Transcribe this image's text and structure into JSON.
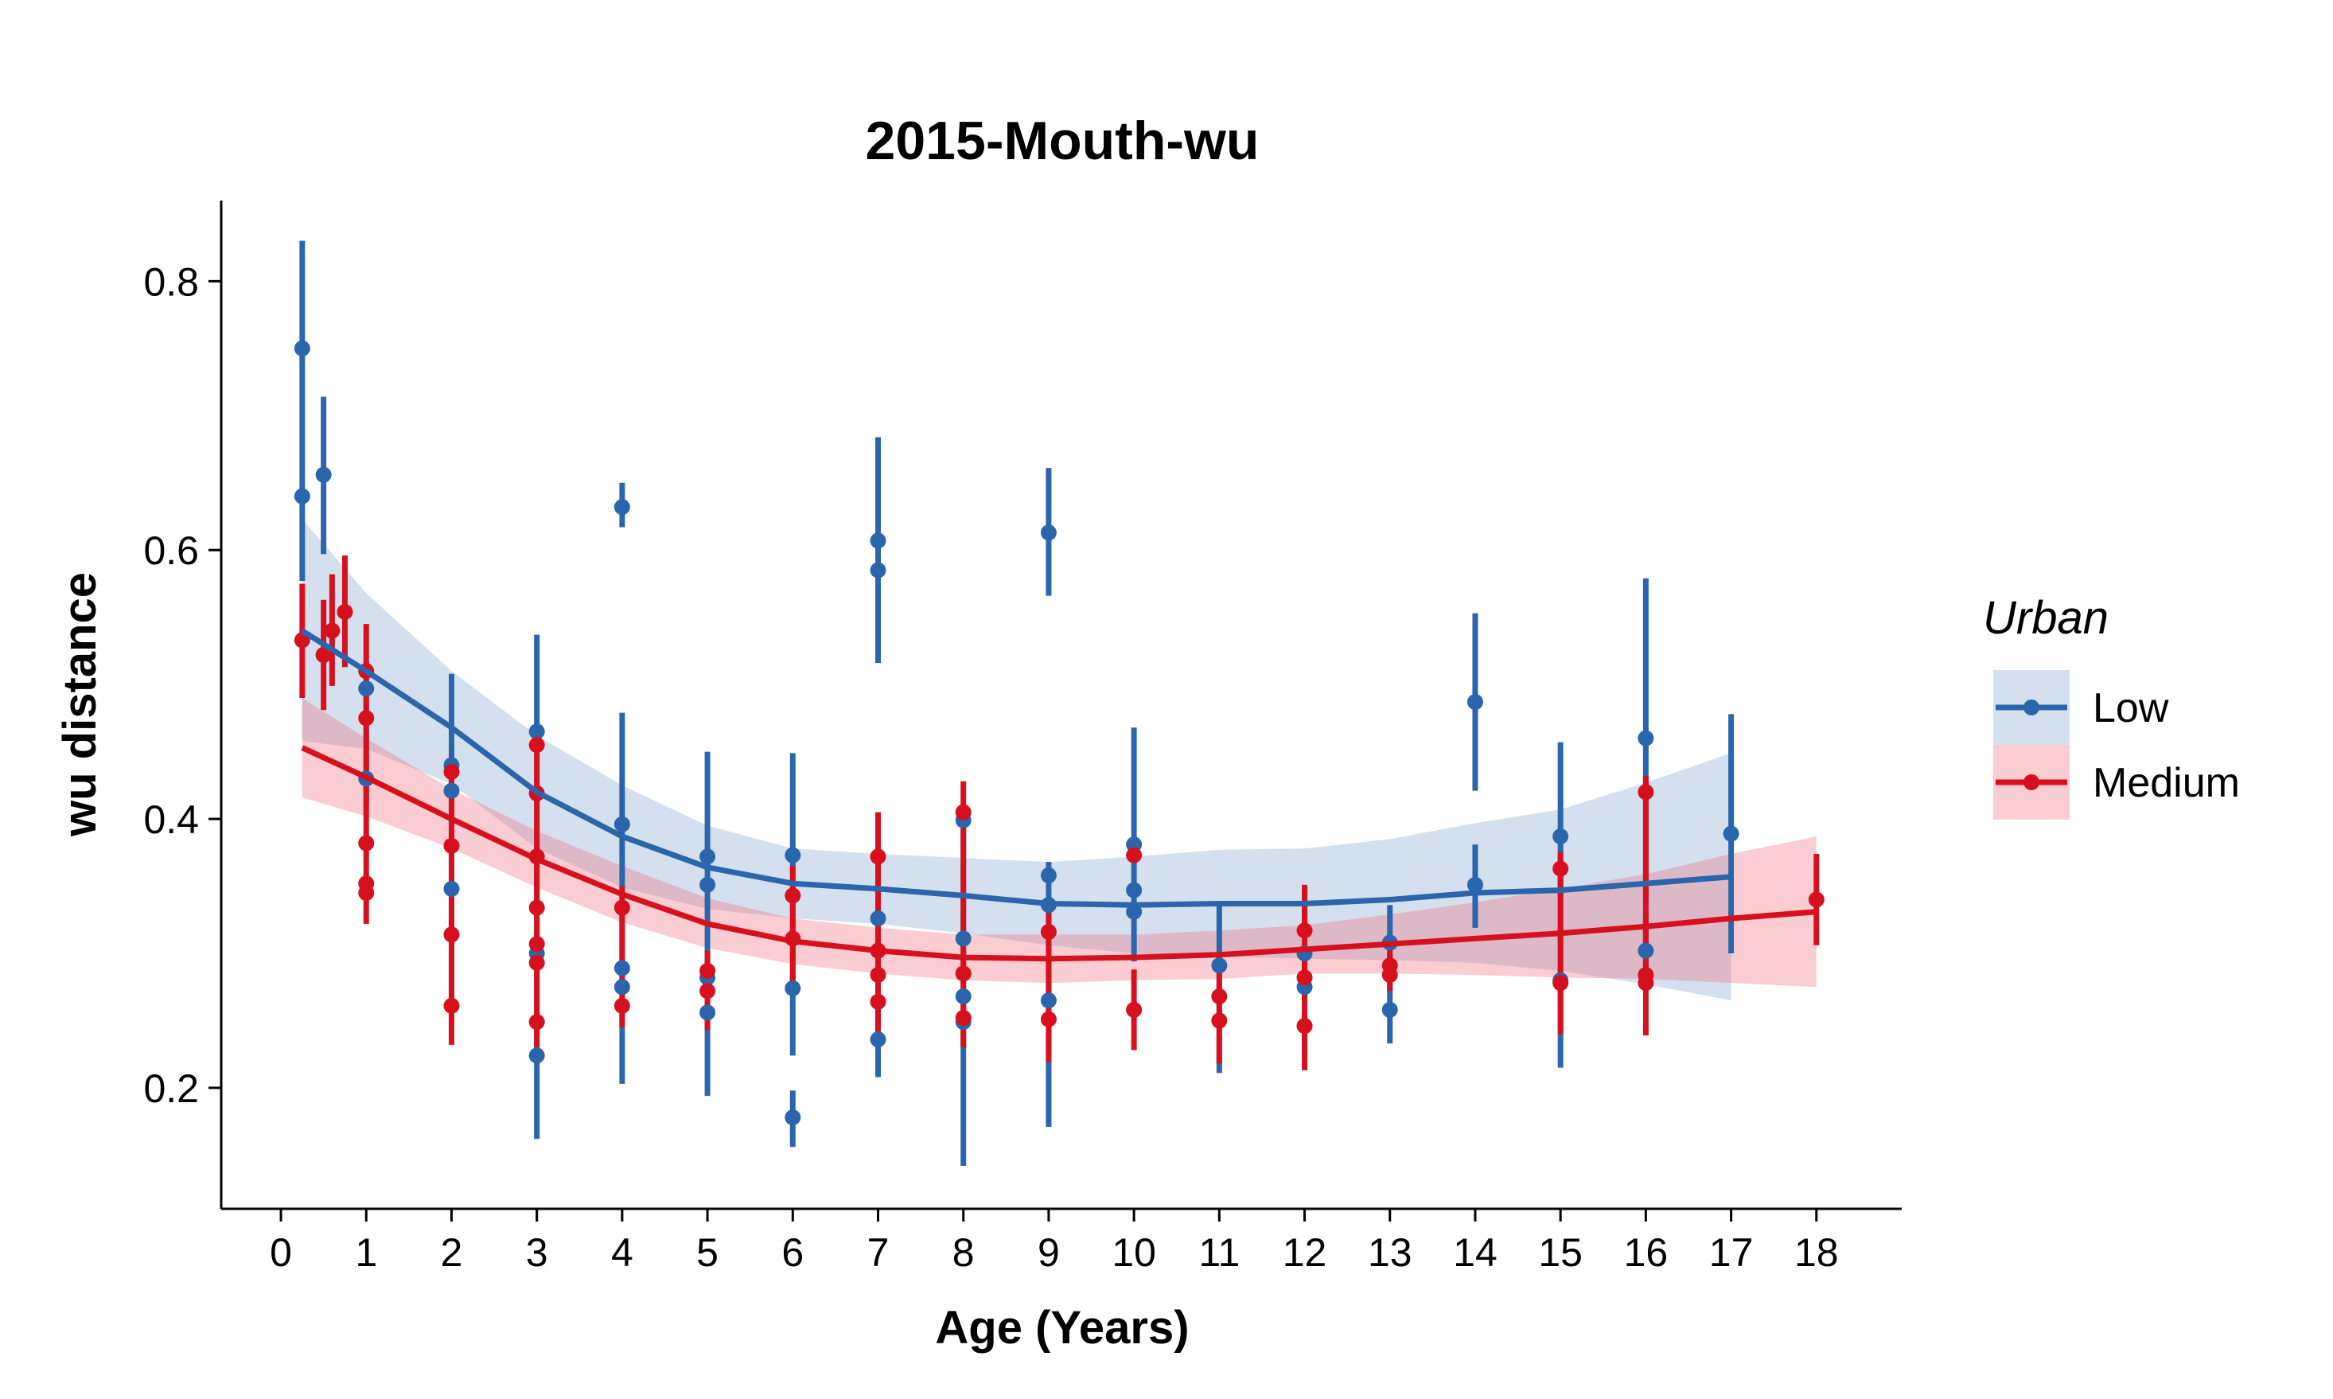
{
  "chart_data": {
    "type": "scatter",
    "title": "2015-Mouth-wu",
    "xlabel": "Age (Years)",
    "ylabel": "wu distance",
    "xlim": [
      -0.7,
      19.0
    ],
    "ylim": [
      0.11,
      0.86
    ],
    "xticks": [
      0,
      1,
      2,
      3,
      4,
      5,
      6,
      7,
      8,
      9,
      10,
      11,
      12,
      13,
      14,
      15,
      16,
      17,
      18
    ],
    "yticks": [
      0.2,
      0.4,
      0.6,
      0.8
    ],
    "yticklabels": [
      "0.2",
      "0.4",
      "0.6",
      "0.8"
    ],
    "grid": false,
    "legend": {
      "title": "Urban",
      "position": "right"
    },
    "series": [
      {
        "name": "Low",
        "color": "#2B65AB",
        "ribbon_color": "#2B65AB",
        "points": [
          {
            "x": 0.25,
            "y": 0.75
          },
          {
            "x": 0.25,
            "y": 0.64
          },
          {
            "x": 0.5,
            "y": 0.656
          },
          {
            "x": 0.5,
            "y": 0.522
          },
          {
            "x": 1,
            "y": 0.497
          },
          {
            "x": 1,
            "y": 0.43
          },
          {
            "x": 2,
            "y": 0.44
          },
          {
            "x": 2,
            "y": 0.421
          },
          {
            "x": 2,
            "y": 0.348
          },
          {
            "x": 3,
            "y": 0.465
          },
          {
            "x": 3,
            "y": 0.3
          },
          {
            "x": 3,
            "y": 0.224
          },
          {
            "x": 4,
            "y": 0.632
          },
          {
            "x": 4,
            "y": 0.396
          },
          {
            "x": 4,
            "y": 0.289
          },
          {
            "x": 4,
            "y": 0.275
          },
          {
            "x": 5,
            "y": 0.372
          },
          {
            "x": 5,
            "y": 0.351
          },
          {
            "x": 5,
            "y": 0.282
          },
          {
            "x": 5,
            "y": 0.256
          },
          {
            "x": 6,
            "y": 0.373
          },
          {
            "x": 6,
            "y": 0.274
          },
          {
            "x": 6,
            "y": 0.178
          },
          {
            "x": 7,
            "y": 0.607
          },
          {
            "x": 7,
            "y": 0.585
          },
          {
            "x": 7,
            "y": 0.326
          },
          {
            "x": 7,
            "y": 0.236
          },
          {
            "x": 8,
            "y": 0.399
          },
          {
            "x": 8,
            "y": 0.311
          },
          {
            "x": 8,
            "y": 0.268
          },
          {
            "x": 8,
            "y": 0.249
          },
          {
            "x": 9,
            "y": 0.613
          },
          {
            "x": 9,
            "y": 0.358
          },
          {
            "x": 9,
            "y": 0.336
          },
          {
            "x": 9,
            "y": 0.265
          },
          {
            "x": 10,
            "y": 0.381
          },
          {
            "x": 10,
            "y": 0.347
          },
          {
            "x": 10,
            "y": 0.331
          },
          {
            "x": 11,
            "y": 0.291
          },
          {
            "x": 12,
            "y": 0.3
          },
          {
            "x": 12,
            "y": 0.275
          },
          {
            "x": 13,
            "y": 0.308
          },
          {
            "x": 13,
            "y": 0.258
          },
          {
            "x": 14,
            "y": 0.487
          },
          {
            "x": 14,
            "y": 0.351
          },
          {
            "x": 15,
            "y": 0.387
          },
          {
            "x": 15,
            "y": 0.28
          },
          {
            "x": 16,
            "y": 0.46
          },
          {
            "x": 16,
            "y": 0.302
          },
          {
            "x": 17,
            "y": 0.389
          }
        ],
        "errorbars": [
          {
            "x": 0.25,
            "low": 0.577,
            "high": 0.83
          },
          {
            "x": 0.5,
            "low": 0.597,
            "high": 0.714
          },
          {
            "x": 1,
            "low": 0.41,
            "high": 0.517
          },
          {
            "x": 2,
            "low": 0.258,
            "high": 0.508
          },
          {
            "x": 3,
            "low": 0.162,
            "high": 0.537
          },
          {
            "x": 4,
            "low": 0.617,
            "high": 0.65
          },
          {
            "x": 4,
            "low": 0.203,
            "high": 0.479
          },
          {
            "x": 5,
            "low": 0.194,
            "high": 0.45
          },
          {
            "x": 6,
            "low": 0.224,
            "high": 0.449
          },
          {
            "x": 6,
            "low": 0.156,
            "high": 0.198
          },
          {
            "x": 7,
            "low": 0.516,
            "high": 0.684
          },
          {
            "x": 7,
            "low": 0.208,
            "high": 0.34
          },
          {
            "x": 8,
            "low": 0.142,
            "high": 0.41
          },
          {
            "x": 9,
            "low": 0.566,
            "high": 0.661
          },
          {
            "x": 9,
            "low": 0.171,
            "high": 0.368
          },
          {
            "x": 10,
            "low": 0.294,
            "high": 0.468
          },
          {
            "x": 11,
            "low": 0.211,
            "high": 0.338
          },
          {
            "x": 12,
            "low": 0.266,
            "high": 0.306
          },
          {
            "x": 13,
            "low": 0.233,
            "high": 0.336
          },
          {
            "x": 14,
            "low": 0.421,
            "high": 0.553
          },
          {
            "x": 14,
            "low": 0.319,
            "high": 0.381
          },
          {
            "x": 15,
            "low": 0.215,
            "high": 0.457
          },
          {
            "x": 16,
            "low": 0.34,
            "high": 0.579
          },
          {
            "x": 16,
            "low": 0.285,
            "high": 0.33
          },
          {
            "x": 17,
            "low": 0.3,
            "high": 0.478
          }
        ],
        "smooth": {
          "x": [
            0.25,
            1,
            2,
            3,
            4,
            5,
            6,
            7,
            8,
            9,
            10,
            11,
            12,
            13,
            14,
            15,
            16,
            17
          ],
          "y": [
            0.54,
            0.51,
            0.468,
            0.42,
            0.387,
            0.364,
            0.352,
            0.348,
            0.343,
            0.337,
            0.336,
            0.337,
            0.337,
            0.34,
            0.345,
            0.347,
            0.352,
            0.357
          ],
          "lower": [
            0.458,
            0.452,
            0.426,
            0.378,
            0.349,
            0.333,
            0.326,
            0.322,
            0.315,
            0.306,
            0.3,
            0.298,
            0.296,
            0.295,
            0.293,
            0.287,
            0.277,
            0.265
          ],
          "upper": [
            0.623,
            0.568,
            0.51,
            0.462,
            0.425,
            0.395,
            0.378,
            0.374,
            0.371,
            0.368,
            0.372,
            0.377,
            0.378,
            0.385,
            0.397,
            0.407,
            0.427,
            0.449
          ]
        }
      },
      {
        "name": "Medium",
        "color": "#D7101E",
        "ribbon_color": "#EF6F7E",
        "points": [
          {
            "x": 0.25,
            "y": 0.533
          },
          {
            "x": 0.5,
            "y": 0.522
          },
          {
            "x": 0.6,
            "y": 0.54
          },
          {
            "x": 0.75,
            "y": 0.554
          },
          {
            "x": 1,
            "y": 0.51
          },
          {
            "x": 1,
            "y": 0.475
          },
          {
            "x": 1,
            "y": 0.382
          },
          {
            "x": 1,
            "y": 0.352
          },
          {
            "x": 1,
            "y": 0.345
          },
          {
            "x": 2,
            "y": 0.435
          },
          {
            "x": 2,
            "y": 0.38
          },
          {
            "x": 2,
            "y": 0.314
          },
          {
            "x": 2,
            "y": 0.261
          },
          {
            "x": 3,
            "y": 0.455
          },
          {
            "x": 3,
            "y": 0.419
          },
          {
            "x": 3,
            "y": 0.372
          },
          {
            "x": 3,
            "y": 0.334
          },
          {
            "x": 3,
            "y": 0.307
          },
          {
            "x": 3,
            "y": 0.293
          },
          {
            "x": 3,
            "y": 0.249
          },
          {
            "x": 4,
            "y": 0.334
          },
          {
            "x": 4,
            "y": 0.261
          },
          {
            "x": 5,
            "y": 0.287
          },
          {
            "x": 5,
            "y": 0.272
          },
          {
            "x": 6,
            "y": 0.343
          },
          {
            "x": 6,
            "y": 0.311
          },
          {
            "x": 7,
            "y": 0.372
          },
          {
            "x": 7,
            "y": 0.302
          },
          {
            "x": 7,
            "y": 0.284
          },
          {
            "x": 7,
            "y": 0.264
          },
          {
            "x": 8,
            "y": 0.405
          },
          {
            "x": 8,
            "y": 0.285
          },
          {
            "x": 8,
            "y": 0.252
          },
          {
            "x": 9,
            "y": 0.316
          },
          {
            "x": 9,
            "y": 0.251
          },
          {
            "x": 10,
            "y": 0.373
          },
          {
            "x": 10,
            "y": 0.258
          },
          {
            "x": 11,
            "y": 0.268
          },
          {
            "x": 11,
            "y": 0.25
          },
          {
            "x": 12,
            "y": 0.317
          },
          {
            "x": 12,
            "y": 0.282
          },
          {
            "x": 12,
            "y": 0.246
          },
          {
            "x": 13,
            "y": 0.291
          },
          {
            "x": 13,
            "y": 0.284
          },
          {
            "x": 15,
            "y": 0.363
          },
          {
            "x": 15,
            "y": 0.278
          },
          {
            "x": 16,
            "y": 0.42
          },
          {
            "x": 16,
            "y": 0.284
          },
          {
            "x": 16,
            "y": 0.278
          },
          {
            "x": 18,
            "y": 0.34
          }
        ],
        "errorbars": [
          {
            "x": 0.25,
            "low": 0.49,
            "high": 0.575
          },
          {
            "x": 0.5,
            "low": 0.481,
            "high": 0.563
          },
          {
            "x": 0.6,
            "low": 0.499,
            "high": 0.582
          },
          {
            "x": 0.75,
            "low": 0.513,
            "high": 0.596
          },
          {
            "x": 1,
            "low": 0.322,
            "high": 0.545
          },
          {
            "x": 2,
            "low": 0.232,
            "high": 0.439
          },
          {
            "x": 3,
            "low": 0.23,
            "high": 0.462
          },
          {
            "x": 4,
            "low": 0.245,
            "high": 0.35
          },
          {
            "x": 5,
            "low": 0.243,
            "high": 0.302
          },
          {
            "x": 6,
            "low": 0.272,
            "high": 0.365
          },
          {
            "x": 7,
            "low": 0.241,
            "high": 0.405
          },
          {
            "x": 8,
            "low": 0.23,
            "high": 0.428
          },
          {
            "x": 9,
            "low": 0.219,
            "high": 0.33
          },
          {
            "x": 10,
            "low": 0.228,
            "high": 0.288
          },
          {
            "x": 11,
            "low": 0.218,
            "high": 0.298
          },
          {
            "x": 12,
            "low": 0.213,
            "high": 0.351
          },
          {
            "x": 13,
            "low": 0.272,
            "high": 0.305
          },
          {
            "x": 15,
            "low": 0.24,
            "high": 0.375
          },
          {
            "x": 16,
            "low": 0.239,
            "high": 0.432
          },
          {
            "x": 18,
            "low": 0.306,
            "high": 0.374
          }
        ],
        "smooth": {
          "x": [
            0.25,
            1,
            2,
            3,
            4,
            5,
            6,
            7,
            8,
            9,
            10,
            11,
            12,
            13,
            14,
            15,
            16,
            17,
            18
          ],
          "y": [
            0.453,
            0.431,
            0.4,
            0.37,
            0.344,
            0.322,
            0.309,
            0.302,
            0.297,
            0.296,
            0.297,
            0.299,
            0.303,
            0.307,
            0.311,
            0.315,
            0.32,
            0.326,
            0.331
          ],
          "lower": [
            0.416,
            0.402,
            0.378,
            0.349,
            0.323,
            0.304,
            0.292,
            0.285,
            0.28,
            0.278,
            0.28,
            0.281,
            0.285,
            0.285,
            0.284,
            0.282,
            0.281,
            0.278,
            0.275
          ],
          "upper": [
            0.49,
            0.46,
            0.422,
            0.391,
            0.365,
            0.341,
            0.326,
            0.319,
            0.314,
            0.314,
            0.314,
            0.317,
            0.321,
            0.329,
            0.338,
            0.348,
            0.359,
            0.374,
            0.387
          ]
        }
      }
    ]
  }
}
